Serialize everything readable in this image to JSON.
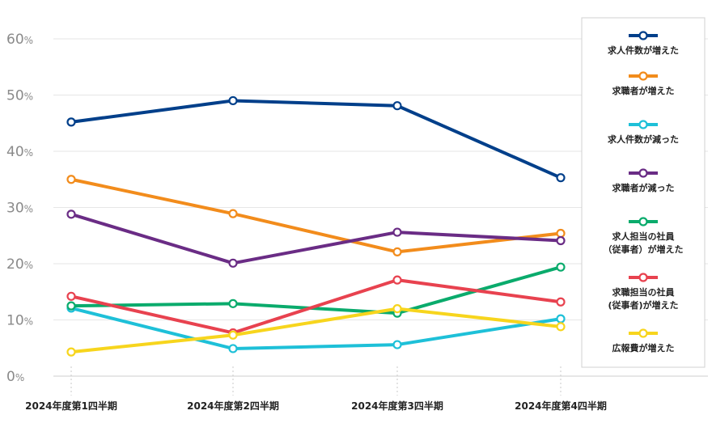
{
  "chart_data": {
    "type": "line",
    "categories": [
      "2024年度第1四半期",
      "2024年度第2四半期",
      "2024年度第3四半期",
      "2024年度第4四半期"
    ],
    "ylim": [
      0,
      60
    ],
    "yticks": [
      {
        "value": 0,
        "label": "0",
        "unit": "%"
      },
      {
        "value": 10,
        "label": "10",
        "unit": "%"
      },
      {
        "value": 20,
        "label": "20",
        "unit": "%"
      },
      {
        "value": 30,
        "label": "30",
        "unit": "%"
      },
      {
        "value": 40,
        "label": "40",
        "unit": "%"
      },
      {
        "value": 50,
        "label": "50",
        "unit": "%"
      },
      {
        "value": 60,
        "label": "60",
        "unit": "%"
      }
    ],
    "grid": true,
    "legend_position": "right",
    "series": [
      {
        "name": "求人件数が増えた",
        "color": "#003f8a",
        "values": [
          45.2,
          49.0,
          48.1,
          35.3
        ]
      },
      {
        "name": "求職者が増えた",
        "color": "#f28c1c",
        "values": [
          35.0,
          28.9,
          22.1,
          25.4
        ]
      },
      {
        "name": "求人件数が減った",
        "color": "#1ec0d8",
        "values": [
          12.1,
          4.9,
          5.6,
          10.2
        ]
      },
      {
        "name": "求職者が減った",
        "color": "#6a2c85",
        "values": [
          28.8,
          20.1,
          25.6,
          24.1
        ]
      },
      {
        "name": "求人担当の社員\n（従事者）が増えた",
        "color": "#0aab6c",
        "values": [
          12.5,
          12.9,
          11.2,
          19.4
        ]
      },
      {
        "name": "求職担当の社員\n(従事者)が増えた",
        "color": "#e8424f",
        "values": [
          14.2,
          7.7,
          17.1,
          13.2
        ]
      },
      {
        "name": "広報費が増えた",
        "color": "#f7d51d",
        "values": [
          4.3,
          7.3,
          12.0,
          8.8
        ]
      }
    ]
  }
}
